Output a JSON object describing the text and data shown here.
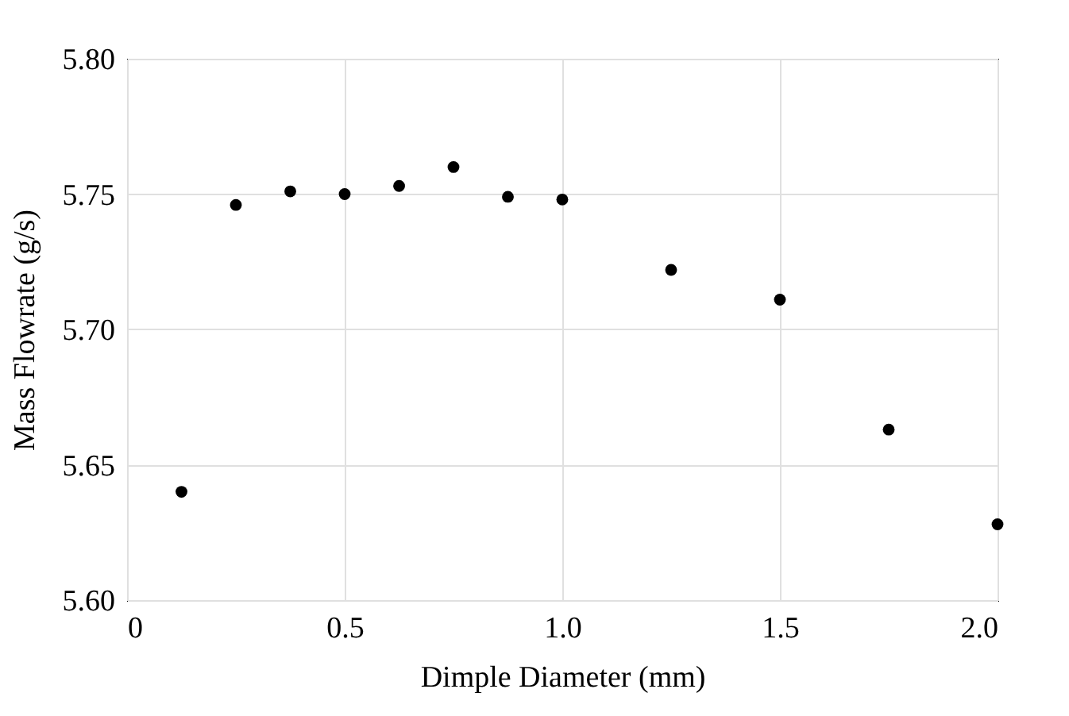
{
  "chart_data": {
    "type": "scatter",
    "xlabel": "Dimple Diameter (mm)",
    "ylabel": "Mass Flowrate (g/s)",
    "x": [
      0.125,
      0.25,
      0.375,
      0.5,
      0.625,
      0.75,
      0.875,
      1.0,
      1.25,
      1.5,
      1.75,
      2.0
    ],
    "series": [
      {
        "color": "#000000",
        "values": [
          5.64,
          5.746,
          5.751,
          5.75,
          5.753,
          5.76,
          5.749,
          5.748,
          5.722,
          5.711,
          5.663,
          5.628
        ]
      }
    ],
    "xlim": [
      0,
      2.0
    ],
    "xticks": [
      0,
      0.5,
      {
        "value": 1,
        "label": "1.0"
      },
      1.5,
      {
        "value": 2,
        "label": "2.0"
      }
    ],
    "ylim": [
      5.6,
      5.8
    ],
    "yticks": [
      {
        "value": 5.6,
        "label": "5.60"
      },
      {
        "value": 5.65,
        "label": "5.65"
      },
      {
        "value": 5.7,
        "label": "5.70"
      },
      {
        "value": 5.75,
        "label": "5.75"
      },
      {
        "value": 5.8,
        "label": "5.80"
      }
    ],
    "grid": true,
    "marker": "circle"
  }
}
